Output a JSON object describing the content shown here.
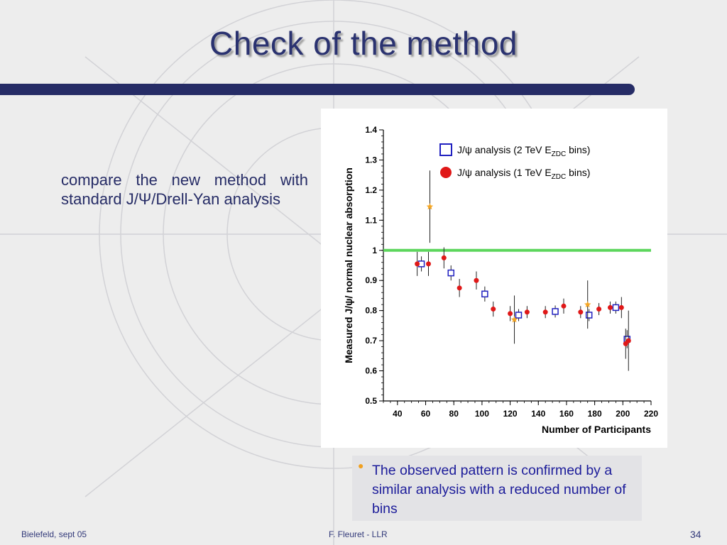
{
  "slide": {
    "title": "Check of the method",
    "subtitle": "compare the new method with standard J/Ψ/Drell-Yan analysis",
    "note": "The observed pattern is confirmed by a similar analysis with a reduced number of bins",
    "footer_left": "Bielefeld, sept 05",
    "footer_center": "F. Fleuret - LLR",
    "page_number": "34"
  },
  "colors": {
    "title": "#2a3270",
    "bar": "#262c66",
    "note_text": "#1c1c9a",
    "bullet": "#f0a020",
    "reference_line": "#5cd65c",
    "series_2tev": "#2020c0",
    "series_1tev": "#e01818",
    "orange_points": "#f5a623"
  },
  "chart_data": {
    "type": "scatter",
    "xlabel": "Number of Participants",
    "ylabel": "Measured J/ψ/ normal nuclear absorption",
    "xlim": [
      30,
      220
    ],
    "ylim": [
      0.5,
      1.4
    ],
    "x_ticks": [
      "40",
      "60",
      "80",
      "100",
      "120",
      "140",
      "160",
      "180",
      "200",
      "220"
    ],
    "y_ticks": [
      "0.5",
      "0.6",
      "0.7",
      "0.8",
      "0.9",
      "1",
      "1.1",
      "1.2",
      "1.3",
      "1.4"
    ],
    "reference_y": 1.0,
    "legend_placement": "top-right",
    "legend": [
      {
        "marker": "open-square",
        "prefix": "J/ψ analysis (2 TeV E",
        "sub": "ZDC",
        "suffix": " bins)"
      },
      {
        "marker": "filled-circle",
        "prefix": "J/ψ analysis (1 TeV E",
        "sub": "ZDC",
        "suffix": " bins)"
      }
    ],
    "series": [
      {
        "marker": "open-square",
        "points": [
          {
            "x": 57,
            "y": 0.955,
            "err": 0.025
          },
          {
            "x": 78,
            "y": 0.925,
            "err": 0.025
          },
          {
            "x": 102,
            "y": 0.855,
            "err": 0.025
          },
          {
            "x": 126,
            "y": 0.785,
            "err": 0.02
          },
          {
            "x": 152,
            "y": 0.797,
            "err": 0.02
          },
          {
            "x": 176,
            "y": 0.785,
            "err": 0.02
          },
          {
            "x": 195,
            "y": 0.81,
            "err": 0.02
          },
          {
            "x": 203,
            "y": 0.705,
            "err": 0.03
          }
        ]
      },
      {
        "marker": "filled-circle",
        "points": [
          {
            "x": 54,
            "y": 0.955,
            "err": 0.04
          },
          {
            "x": 62,
            "y": 0.955,
            "err": 0.04
          },
          {
            "x": 73,
            "y": 0.975,
            "err": 0.035
          },
          {
            "x": 84,
            "y": 0.875,
            "err": 0.03
          },
          {
            "x": 96,
            "y": 0.9,
            "err": 0.03
          },
          {
            "x": 108,
            "y": 0.805,
            "err": 0.025
          },
          {
            "x": 120,
            "y": 0.79,
            "err": 0.025
          },
          {
            "x": 132,
            "y": 0.795,
            "err": 0.02
          },
          {
            "x": 145,
            "y": 0.795,
            "err": 0.02
          },
          {
            "x": 158,
            "y": 0.815,
            "err": 0.025
          },
          {
            "x": 170,
            "y": 0.795,
            "err": 0.02
          },
          {
            "x": 183,
            "y": 0.805,
            "err": 0.02
          },
          {
            "x": 191,
            "y": 0.81,
            "err": 0.02
          },
          {
            "x": 199,
            "y": 0.81,
            "err": 0.035
          },
          {
            "x": 202,
            "y": 0.69,
            "err": 0.05
          },
          {
            "x": 204,
            "y": 0.7,
            "err": 0.1
          }
        ]
      },
      {
        "marker": "orange-star",
        "points": [
          {
            "x": 63,
            "y": 1.145,
            "err": 0.12
          },
          {
            "x": 123,
            "y": 0.77,
            "err": 0.08
          },
          {
            "x": 175,
            "y": 0.82,
            "err": 0.08
          }
        ]
      }
    ]
  }
}
